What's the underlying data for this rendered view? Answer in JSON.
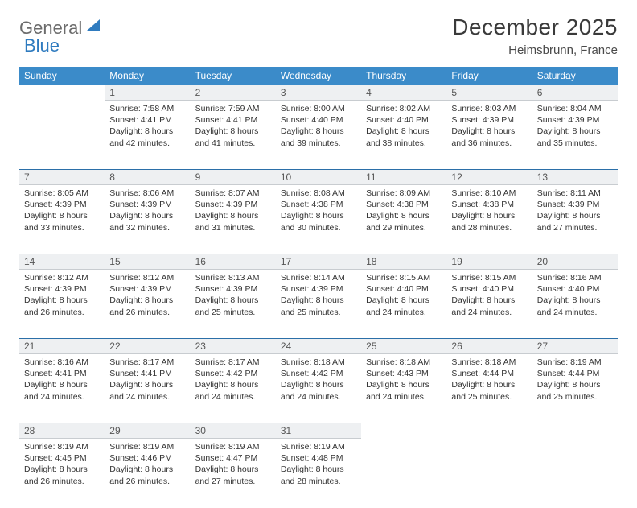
{
  "logo": {
    "text1": "General",
    "text2": "Blue"
  },
  "title": "December 2025",
  "location": "Heimsbrunn, France",
  "colors": {
    "header_bg": "#3b8bc9",
    "header_text": "#ffffff",
    "daynum_bg": "#eef0f2",
    "rule": "#2b6fa8",
    "body_text": "#333333"
  },
  "weekdays": [
    "Sunday",
    "Monday",
    "Tuesday",
    "Wednesday",
    "Thursday",
    "Friday",
    "Saturday"
  ],
  "weeks": [
    [
      null,
      {
        "n": "1",
        "sr": "7:58 AM",
        "ss": "4:41 PM",
        "dl": "8 hours and 42 minutes."
      },
      {
        "n": "2",
        "sr": "7:59 AM",
        "ss": "4:41 PM",
        "dl": "8 hours and 41 minutes."
      },
      {
        "n": "3",
        "sr": "8:00 AM",
        "ss": "4:40 PM",
        "dl": "8 hours and 39 minutes."
      },
      {
        "n": "4",
        "sr": "8:02 AM",
        "ss": "4:40 PM",
        "dl": "8 hours and 38 minutes."
      },
      {
        "n": "5",
        "sr": "8:03 AM",
        "ss": "4:39 PM",
        "dl": "8 hours and 36 minutes."
      },
      {
        "n": "6",
        "sr": "8:04 AM",
        "ss": "4:39 PM",
        "dl": "8 hours and 35 minutes."
      }
    ],
    [
      {
        "n": "7",
        "sr": "8:05 AM",
        "ss": "4:39 PM",
        "dl": "8 hours and 33 minutes."
      },
      {
        "n": "8",
        "sr": "8:06 AM",
        "ss": "4:39 PM",
        "dl": "8 hours and 32 minutes."
      },
      {
        "n": "9",
        "sr": "8:07 AM",
        "ss": "4:39 PM",
        "dl": "8 hours and 31 minutes."
      },
      {
        "n": "10",
        "sr": "8:08 AM",
        "ss": "4:38 PM",
        "dl": "8 hours and 30 minutes."
      },
      {
        "n": "11",
        "sr": "8:09 AM",
        "ss": "4:38 PM",
        "dl": "8 hours and 29 minutes."
      },
      {
        "n": "12",
        "sr": "8:10 AM",
        "ss": "4:38 PM",
        "dl": "8 hours and 28 minutes."
      },
      {
        "n": "13",
        "sr": "8:11 AM",
        "ss": "4:39 PM",
        "dl": "8 hours and 27 minutes."
      }
    ],
    [
      {
        "n": "14",
        "sr": "8:12 AM",
        "ss": "4:39 PM",
        "dl": "8 hours and 26 minutes."
      },
      {
        "n": "15",
        "sr": "8:12 AM",
        "ss": "4:39 PM",
        "dl": "8 hours and 26 minutes."
      },
      {
        "n": "16",
        "sr": "8:13 AM",
        "ss": "4:39 PM",
        "dl": "8 hours and 25 minutes."
      },
      {
        "n": "17",
        "sr": "8:14 AM",
        "ss": "4:39 PM",
        "dl": "8 hours and 25 minutes."
      },
      {
        "n": "18",
        "sr": "8:15 AM",
        "ss": "4:40 PM",
        "dl": "8 hours and 24 minutes."
      },
      {
        "n": "19",
        "sr": "8:15 AM",
        "ss": "4:40 PM",
        "dl": "8 hours and 24 minutes."
      },
      {
        "n": "20",
        "sr": "8:16 AM",
        "ss": "4:40 PM",
        "dl": "8 hours and 24 minutes."
      }
    ],
    [
      {
        "n": "21",
        "sr": "8:16 AM",
        "ss": "4:41 PM",
        "dl": "8 hours and 24 minutes."
      },
      {
        "n": "22",
        "sr": "8:17 AM",
        "ss": "4:41 PM",
        "dl": "8 hours and 24 minutes."
      },
      {
        "n": "23",
        "sr": "8:17 AM",
        "ss": "4:42 PM",
        "dl": "8 hours and 24 minutes."
      },
      {
        "n": "24",
        "sr": "8:18 AM",
        "ss": "4:42 PM",
        "dl": "8 hours and 24 minutes."
      },
      {
        "n": "25",
        "sr": "8:18 AM",
        "ss": "4:43 PM",
        "dl": "8 hours and 24 minutes."
      },
      {
        "n": "26",
        "sr": "8:18 AM",
        "ss": "4:44 PM",
        "dl": "8 hours and 25 minutes."
      },
      {
        "n": "27",
        "sr": "8:19 AM",
        "ss": "4:44 PM",
        "dl": "8 hours and 25 minutes."
      }
    ],
    [
      {
        "n": "28",
        "sr": "8:19 AM",
        "ss": "4:45 PM",
        "dl": "8 hours and 26 minutes."
      },
      {
        "n": "29",
        "sr": "8:19 AM",
        "ss": "4:46 PM",
        "dl": "8 hours and 26 minutes."
      },
      {
        "n": "30",
        "sr": "8:19 AM",
        "ss": "4:47 PM",
        "dl": "8 hours and 27 minutes."
      },
      {
        "n": "31",
        "sr": "8:19 AM",
        "ss": "4:48 PM",
        "dl": "8 hours and 28 minutes."
      },
      null,
      null,
      null
    ]
  ],
  "labels": {
    "sunrise": "Sunrise:",
    "sunset": "Sunset:",
    "daylight": "Daylight:"
  }
}
